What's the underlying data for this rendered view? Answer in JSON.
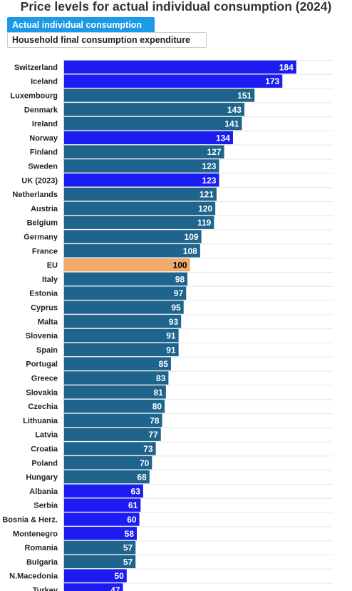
{
  "title": "Price levels for actual individual consumption (2024)",
  "tabs": [
    {
      "label": "Actual individual consumption",
      "active": true
    },
    {
      "label": "Household final consumption expenditure",
      "active": false
    }
  ],
  "colors": {
    "euro_area": "#1f648c",
    "non_euro": "#1c1cf2",
    "eu_average": "#f0aa6e",
    "tab_active": "#1a9ae8"
  },
  "chart_data": {
    "type": "bar",
    "orientation": "horizontal",
    "title": "Price levels for actual individual consumption (2024)",
    "xlabel": "",
    "ylabel": "",
    "xlim": [
      0,
      200
    ],
    "grid": true,
    "categories": [
      "Switzerland",
      "Iceland",
      "Luxembourg",
      "Denmark",
      "Ireland",
      "Norway",
      "Finland",
      "Sweden",
      "UK (2023)",
      "Netherlands",
      "Austria",
      "Belgium",
      "Germany",
      "France",
      "EU",
      "Italy",
      "Estonia",
      "Cyprus",
      "Malta",
      "Slovenia",
      "Spain",
      "Portugal",
      "Greece",
      "Slovakia",
      "Czechia",
      "Lithuania",
      "Latvia",
      "Croatia",
      "Poland",
      "Hungary",
      "Albania",
      "Serbia",
      "Bosnia & Herz.",
      "Montenegro",
      "Romania",
      "Bulgaria",
      "N.Macedonia",
      "Turkey"
    ],
    "values": [
      184,
      173,
      151,
      143,
      141,
      134,
      127,
      123,
      123,
      121,
      120,
      119,
      109,
      108,
      100,
      98,
      97,
      95,
      93,
      91,
      91,
      85,
      83,
      81,
      80,
      78,
      77,
      73,
      70,
      68,
      63,
      61,
      60,
      58,
      57,
      57,
      50,
      47
    ],
    "bar_colors": [
      "#1c1cf2",
      "#1c1cf2",
      "#1f648c",
      "#1f648c",
      "#1f648c",
      "#1c1cf2",
      "#1f648c",
      "#1f648c",
      "#1c1cf2",
      "#1f648c",
      "#1f648c",
      "#1f648c",
      "#1f648c",
      "#1f648c",
      "#f0aa6e",
      "#1f648c",
      "#1f648c",
      "#1f648c",
      "#1f648c",
      "#1f648c",
      "#1f648c",
      "#1f648c",
      "#1f648c",
      "#1f648c",
      "#1f648c",
      "#1f648c",
      "#1f648c",
      "#1f648c",
      "#1f648c",
      "#1f648c",
      "#1c1cf2",
      "#1c1cf2",
      "#1c1cf2",
      "#1c1cf2",
      "#1f648c",
      "#1f648c",
      "#1c1cf2",
      "#1c1cf2"
    ]
  }
}
